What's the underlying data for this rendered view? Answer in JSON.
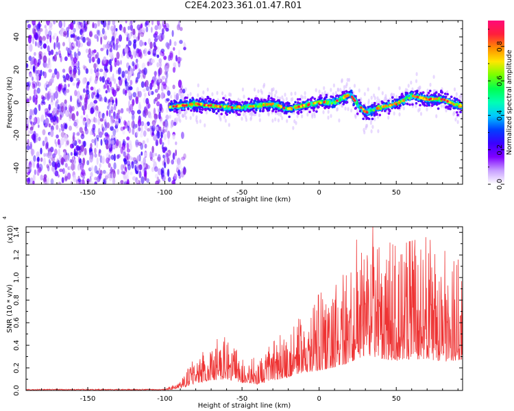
{
  "page_title": "C2E4.2023.361.01.47.R01",
  "chart_data": [
    {
      "type": "heatmap",
      "title": "",
      "xlabel": "Height of straight line (km)",
      "ylabel": "Frequency (Hz)",
      "xlim": [
        -190,
        93
      ],
      "ylim": [
        -50,
        50
      ],
      "xticks": [
        -150,
        -100,
        -50,
        0,
        50
      ],
      "yticks": [
        -40,
        -20,
        0,
        20,
        40
      ],
      "colorbar": {
        "label": "Normalized spectral amplitude",
        "range": [
          0,
          0.95
        ],
        "ticks": [
          0.0,
          0.2,
          0.4,
          0.6,
          0.8
        ],
        "colormap": [
          "#ffffff",
          "#c8a0ff",
          "#7f00ff",
          "#3a00ff",
          "#0040ff",
          "#00c8ff",
          "#00ffb4",
          "#00ff50",
          "#78ff00",
          "#ffe600",
          "#ff8c00",
          "#ff1e3c",
          "#ff0a78"
        ]
      },
      "regions": [
        {
          "x_range": [
            -190,
            -97
          ],
          "freq_range": [
            -50,
            50
          ],
          "amplitude": 0.1
        },
        {
          "x_range": [
            -97,
            93
          ],
          "freq_range": [
            -10,
            10
          ],
          "amplitude": 0.6
        }
      ],
      "ridge": {
        "x": [
          -98,
          -90,
          -80,
          -70,
          -60,
          -50,
          -40,
          -30,
          -20,
          -10,
          0,
          10,
          20,
          25,
          30,
          40,
          50,
          60,
          70,
          80,
          90
        ],
        "freq": [
          -3,
          -2,
          -1,
          -2,
          -3,
          -3,
          -2,
          -1,
          -4,
          -2,
          0,
          0,
          5,
          -1,
          -6,
          -3,
          -1,
          4,
          2,
          2,
          -2
        ]
      }
    },
    {
      "type": "line",
      "title": "",
      "xlabel": "Height of straight line (km)",
      "ylabel": "SNR (10 * v/v)",
      "yscale_label": "(x10",
      "yscale_exponent": "4",
      "xlim": [
        -190,
        93
      ],
      "ylim": [
        0,
        1.45
      ],
      "xticks": [
        -150,
        -100,
        -50,
        0,
        50
      ],
      "yticks": [
        0.0,
        0.2,
        0.4,
        0.6,
        0.8,
        1.0,
        1.2,
        1.4
      ],
      "line_color": "#ee3333",
      "envelope": {
        "x": [
          -190,
          -100,
          -90,
          -80,
          -70,
          -60,
          -50,
          -40,
          -30,
          -20,
          -10,
          0,
          10,
          20,
          30,
          40,
          50,
          60,
          70,
          80,
          93
        ],
        "y": [
          0.01,
          0.01,
          0.05,
          0.18,
          0.26,
          0.28,
          0.2,
          0.16,
          0.25,
          0.33,
          0.45,
          0.5,
          0.58,
          0.7,
          0.9,
          0.8,
          0.75,
          0.78,
          0.8,
          0.72,
          0.78
        ]
      }
    }
  ]
}
